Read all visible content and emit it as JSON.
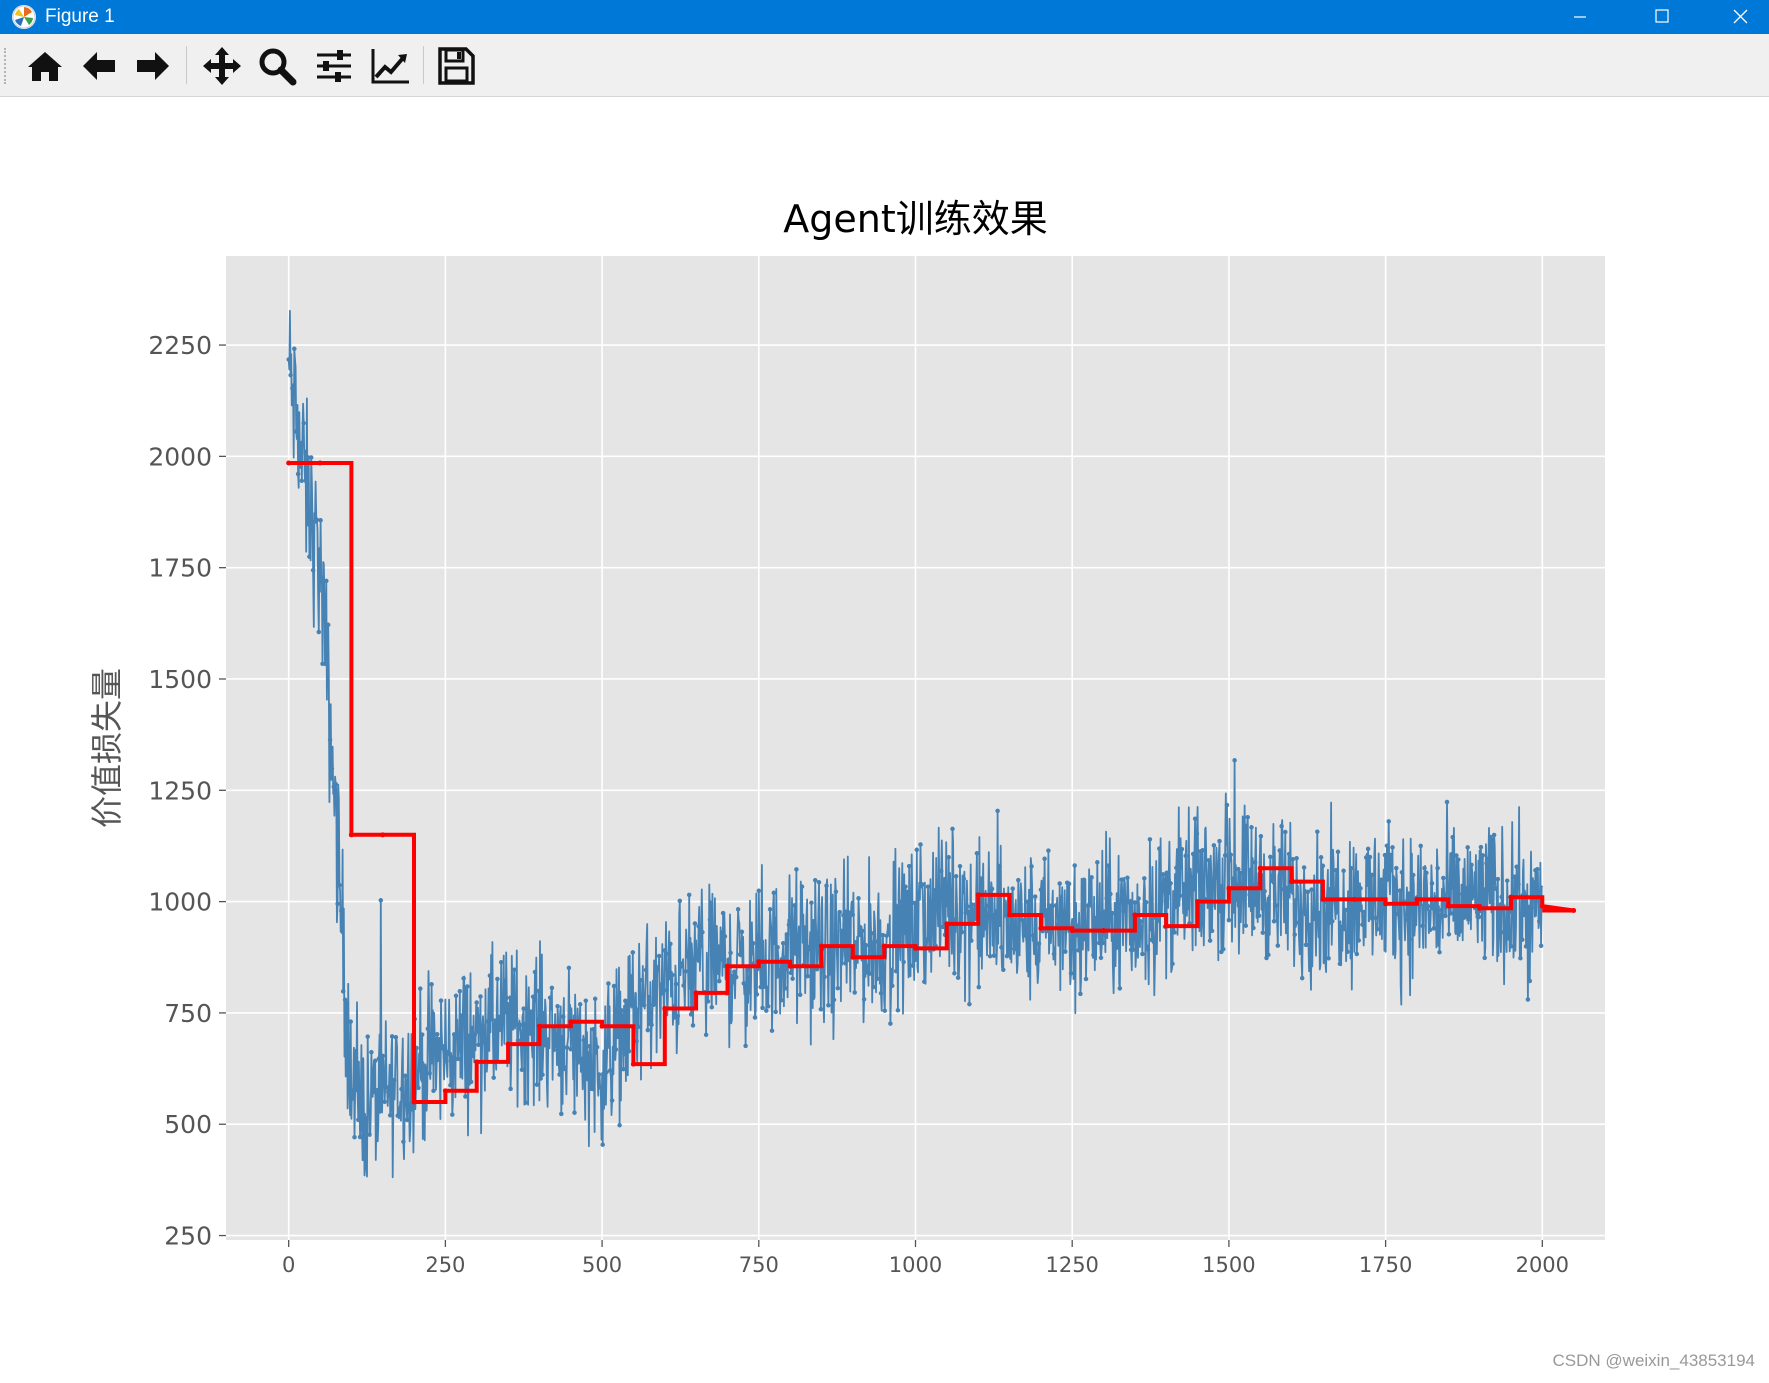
{
  "window": {
    "title": "Figure 1",
    "controls": [
      "minimize",
      "maximize",
      "close"
    ]
  },
  "toolbar": {
    "buttons": [
      {
        "name": "home",
        "icon": "home-icon"
      },
      {
        "name": "back",
        "icon": "arrow-left-icon"
      },
      {
        "name": "forward",
        "icon": "arrow-right-icon"
      },
      {
        "name": "pan",
        "icon": "move-icon"
      },
      {
        "name": "zoom",
        "icon": "magnifier-icon"
      },
      {
        "name": "configure-subplots",
        "icon": "sliders-icon"
      },
      {
        "name": "edit-axes",
        "icon": "line-chart-icon"
      },
      {
        "name": "save",
        "icon": "floppy-disk-icon"
      }
    ]
  },
  "watermark": "CSDN @weixin_43853194",
  "colors": {
    "titlebar": "#0078d7",
    "plot_background": "#e5e5e5",
    "grid": "#ffffff",
    "raw_series": "#4682b4",
    "step_series": "#ff0000"
  },
  "chart_data": {
    "type": "line",
    "title": "Agent训练效果",
    "xlabel": "",
    "ylabel": "价值损失量",
    "xlim": [
      -100,
      2100
    ],
    "ylim": [
      240,
      2450
    ],
    "xticks": [
      0,
      250,
      500,
      750,
      1000,
      1250,
      1500,
      1750,
      2000
    ],
    "yticks": [
      250,
      500,
      750,
      1000,
      1250,
      1500,
      1750,
      2000,
      2250
    ],
    "grid": true,
    "series": [
      {
        "kind": "noisy-raw",
        "x_range": [
          0,
          2000
        ],
        "marker": "dot",
        "x_sampled": [
          0,
          25,
          50,
          75,
          100,
          125,
          150,
          175,
          200,
          250,
          300,
          350,
          400,
          450,
          500,
          550,
          600,
          650,
          700,
          750,
          800,
          850,
          900,
          950,
          1000,
          1050,
          1100,
          1150,
          1200,
          1250,
          1300,
          1350,
          1400,
          1450,
          1500,
          1550,
          1600,
          1650,
          1700,
          1750,
          1800,
          1850,
          1900,
          1950,
          2000
        ],
        "y_sampled": [
          2200,
          1950,
          1750,
          1200,
          560,
          540,
          560,
          590,
          620,
          660,
          700,
          730,
          720,
          690,
          620,
          760,
          800,
          850,
          860,
          850,
          900,
          880,
          900,
          900,
          950,
          1000,
          970,
          940,
          940,
          940,
          960,
          950,
          1000,
          1030,
          1060,
          1040,
          1000,
          1000,
          1000,
          1000,
          990,
          990,
          1010,
          990,
          980
        ],
        "noise_amplitude": 150,
        "extremes": {
          "max": 2365,
          "min": 335
        }
      },
      {
        "kind": "step-mean",
        "interval": 50,
        "values": [
          1985,
          1985,
          1150,
          1150,
          550,
          575,
          640,
          680,
          720,
          730,
          720,
          635,
          760,
          795,
          855,
          865,
          855,
          900,
          875,
          900,
          895,
          950,
          1015,
          970,
          940,
          935,
          935,
          970,
          945,
          1000,
          1030,
          1075,
          1045,
          1005,
          1005,
          995,
          1005,
          990,
          985,
          1010,
          990,
          980
        ]
      }
    ]
  }
}
